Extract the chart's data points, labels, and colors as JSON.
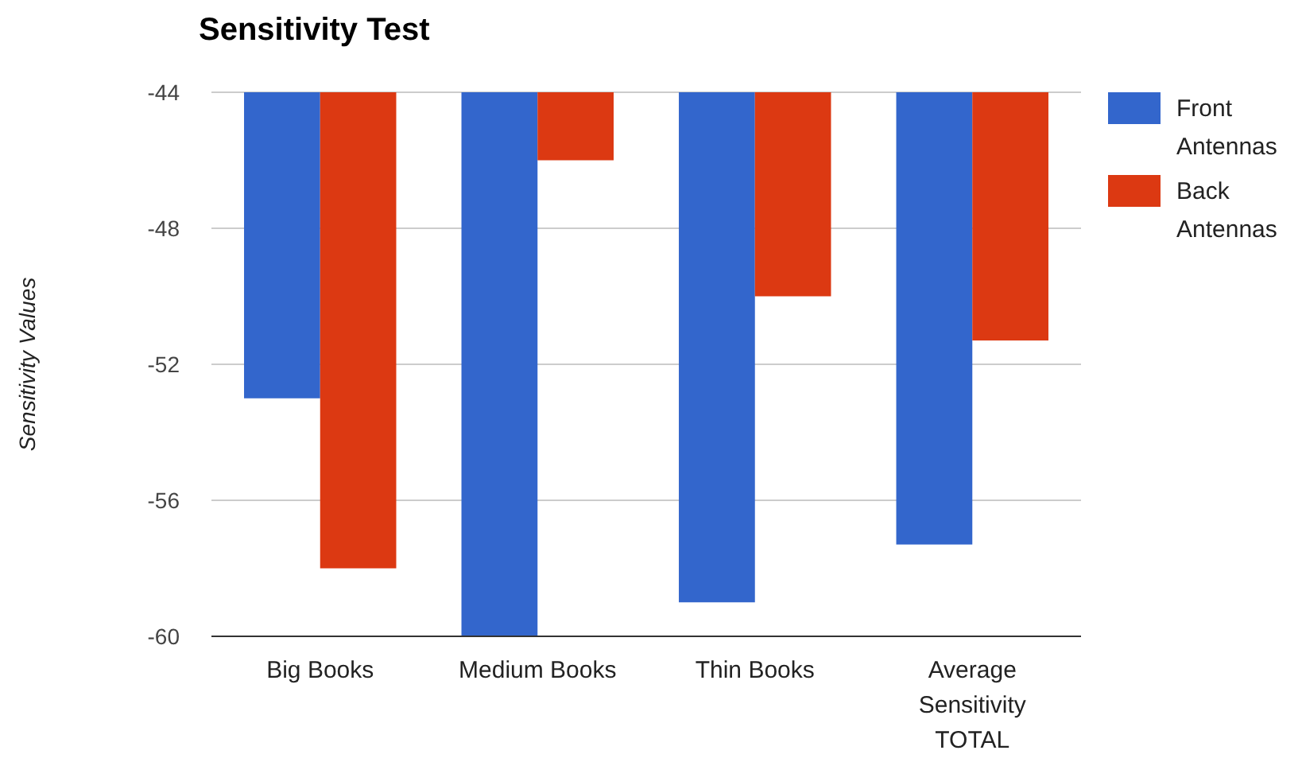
{
  "chart_data": {
    "type": "bar",
    "title": "Sensitivity Test",
    "ylabel": "Sensitivity Values",
    "categories": [
      "Big Books",
      "Medium Books",
      "Thin Books",
      "Average Sensitivity TOTAL"
    ],
    "series": [
      {
        "name": "Front Antennas",
        "color": "#3366cc",
        "values": [
          -53,
          -60,
          -59,
          -57.3
        ]
      },
      {
        "name": "Back Antennas",
        "color": "#dc3912",
        "values": [
          -58,
          -46,
          -50,
          -51.3
        ]
      }
    ],
    "ylim": [
      -60,
      -44
    ],
    "yticks": [
      -60,
      -56,
      -52,
      -48,
      -44
    ],
    "grid": "y",
    "legend": "right"
  }
}
